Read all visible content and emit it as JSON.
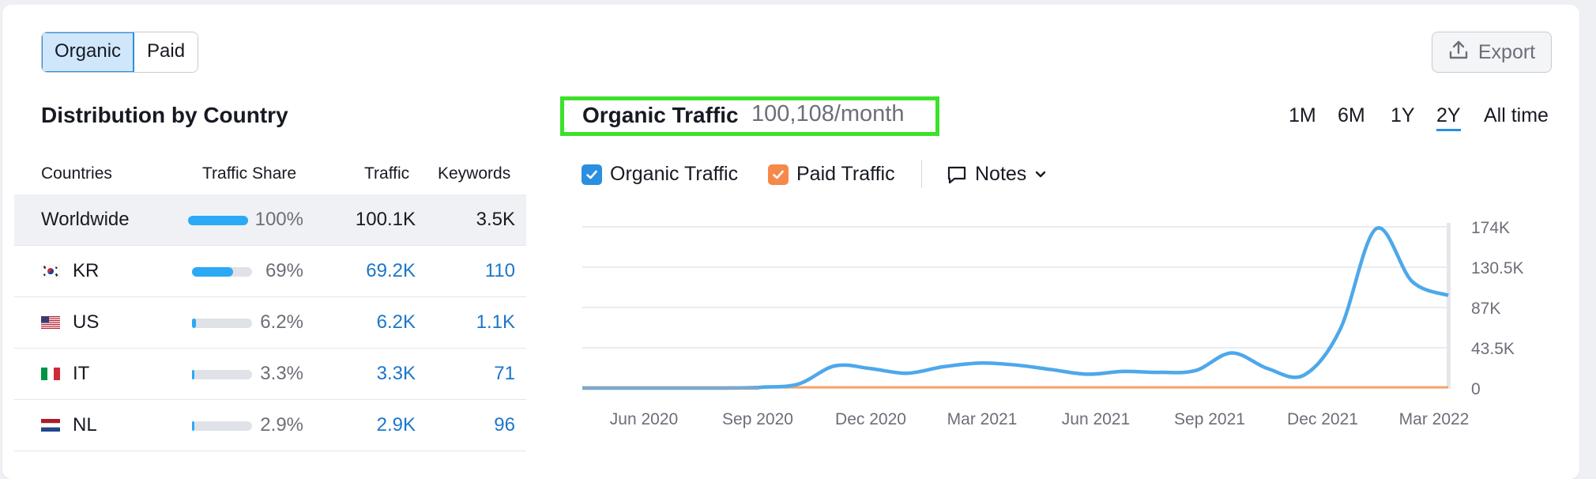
{
  "tabs": {
    "organic": "Organic",
    "paid": "Paid"
  },
  "export_label": "Export",
  "distribution": {
    "title": "Distribution by Country",
    "headers": {
      "countries": "Countries",
      "share": "Traffic Share",
      "traffic": "Traffic",
      "keywords": "Keywords"
    },
    "rows": [
      {
        "country": "Worldwide",
        "flag": "",
        "share": "100%",
        "share_value": 1.0,
        "traffic": "100.1K",
        "keywords": "3.5K"
      },
      {
        "country": "KR",
        "flag": "kr-flag-icon",
        "share": "69%",
        "share_value": 0.69,
        "traffic": "69.2K",
        "keywords": "110"
      },
      {
        "country": "US",
        "flag": "us-flag-icon",
        "share": "6.2%",
        "share_value": 0.062,
        "traffic": "6.2K",
        "keywords": "1.1K"
      },
      {
        "country": "IT",
        "flag": "it-flag-icon",
        "share": "3.3%",
        "share_value": 0.033,
        "traffic": "3.3K",
        "keywords": "71"
      },
      {
        "country": "NL",
        "flag": "nl-flag-icon",
        "share": "2.9%",
        "share_value": 0.029,
        "traffic": "2.9K",
        "keywords": "96"
      }
    ]
  },
  "organic_traffic": {
    "title": "Organic Traffic",
    "value": "100,108/month",
    "periods": [
      "1M",
      "6M",
      "1Y",
      "2Y",
      "All time"
    ],
    "selected_period": "2Y",
    "legend": {
      "organic": "Organic Traffic",
      "paid": "Paid Traffic",
      "notes": "Notes"
    }
  },
  "colors": {
    "accent": "#2a8fe0",
    "organic_line": "#4da8ea",
    "paid_line": "#f5a36a",
    "highlight": "#3ce12a"
  },
  "chart_data": {
    "type": "line",
    "x_tick_labels": [
      "Jun 2020",
      "Sep 2020",
      "Dec 2020",
      "Mar 2021",
      "Jun 2021",
      "Sep 2021",
      "Dec 2021",
      "Mar 2022"
    ],
    "y_tick_labels": [
      "174K",
      "130.5K",
      "87K",
      "43.5K",
      "0"
    ],
    "ylim": [
      0,
      174000
    ],
    "grid": true,
    "series": [
      {
        "name": "Organic Traffic",
        "x": [
          "Apr 2020",
          "May 2020",
          "Jun 2020",
          "Jul 2020",
          "Aug 2020",
          "Sep 2020",
          "Oct 2020",
          "Nov 2020",
          "Dec 2020",
          "Jan 2021",
          "Feb 2021",
          "Mar 2021",
          "Apr 2021",
          "May 2021",
          "Jun 2021",
          "Jul 2021",
          "Aug 2021",
          "Sep 2021",
          "Oct 2021",
          "Nov 2021",
          "Dec 2021",
          "Jan 2022",
          "Feb 2022",
          "Mar 2022",
          "Apr 2022"
        ],
        "values": [
          0,
          0,
          0,
          0,
          0,
          1000,
          4500,
          24000,
          21000,
          16000,
          23000,
          27000,
          25000,
          20000,
          15000,
          18000,
          17000,
          19000,
          38000,
          21000,
          14000,
          63000,
          172000,
          115000,
          100000
        ]
      },
      {
        "name": "Paid Traffic",
        "x": [
          "Apr 2020",
          "Apr 2022"
        ],
        "values": [
          0,
          0
        ]
      }
    ]
  }
}
